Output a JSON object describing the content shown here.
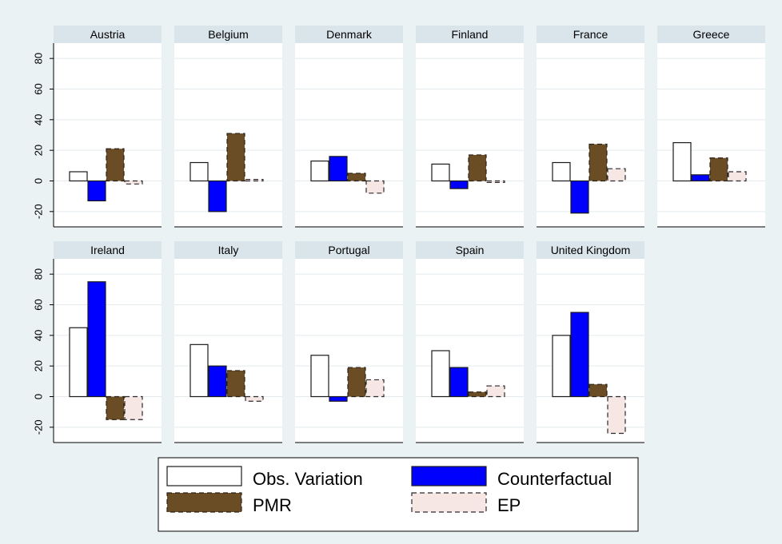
{
  "chart_data": {
    "type": "bar",
    "layout": "small-multiples",
    "series_names": [
      "Obs. Variation",
      "Counterfactual",
      "PMR",
      "EP"
    ],
    "colors": {
      "Obs. Variation": "#ffffff",
      "Counterfactual": "#0000ff",
      "PMR": "#6b4d25",
      "EP": "#f6e6e4",
      "background": "#eaf2f3",
      "strip": "#d9e5ea",
      "grid": "#e3ebee"
    },
    "ylim": [
      -30,
      90
    ],
    "yticks": [
      -20,
      0,
      20,
      40,
      60,
      80
    ],
    "grid": true,
    "legend_position": "bottom",
    "panels": [
      {
        "country": "Austria",
        "values": [
          6,
          -13,
          21,
          -2
        ]
      },
      {
        "country": "Belgium",
        "values": [
          12,
          -20,
          31,
          1
        ]
      },
      {
        "country": "Denmark",
        "values": [
          13,
          16,
          5,
          -8
        ]
      },
      {
        "country": "Finland",
        "values": [
          11,
          -5,
          17,
          -1
        ]
      },
      {
        "country": "France",
        "values": [
          12,
          -21,
          24,
          8
        ]
      },
      {
        "country": "Greece",
        "values": [
          25,
          4,
          15,
          6
        ]
      },
      {
        "country": "Ireland",
        "values": [
          45,
          75,
          -15,
          -15
        ]
      },
      {
        "country": "Italy",
        "values": [
          34,
          20,
          17,
          -3
        ]
      },
      {
        "country": "Portugal",
        "values": [
          27,
          -3,
          19,
          11
        ]
      },
      {
        "country": "Spain",
        "values": [
          30,
          19,
          3,
          7
        ]
      },
      {
        "country": "United Kingdom",
        "values": [
          40,
          55,
          8,
          -24
        ]
      }
    ]
  }
}
